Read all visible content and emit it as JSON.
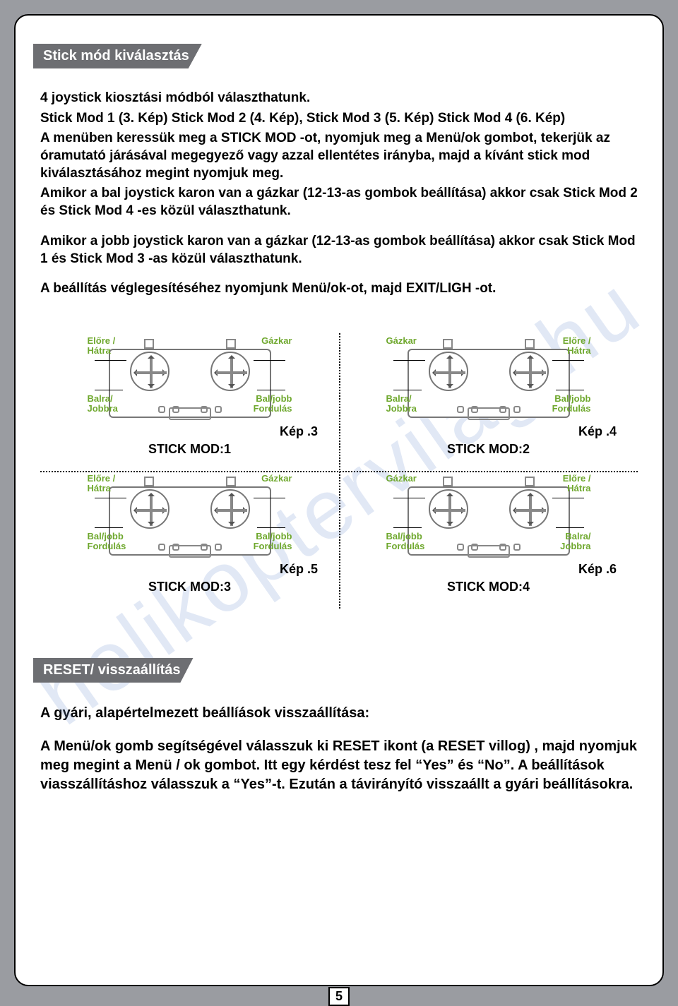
{
  "colors": {
    "page_bg": "#9a9ca1",
    "header_bg": "#6d6e72",
    "header_text": "#ffffff",
    "body_text": "#000000",
    "label_green": "#6fa82e",
    "diagram_line": "#777777",
    "watermark": "rgba(120,150,210,0.22)"
  },
  "header1": "Stick mód kiválasztás",
  "intro": {
    "p1": "4 joystick kiosztási módból választhatunk.",
    "p2": "Stick Mod 1 (3. Kép) Stick Mod 2 (4. Kép), Stick Mod 3 (5. Kép) Stick Mod 4 (6. Kép)",
    "p3": "A menüben keressük meg a STICK MOD -ot, nyomjuk meg a Menü/ok gombot, tekerjük az óramutató járásával megegyező vagy azzal ellentétes irányba, majd a kívánt stick mod kiválasztásához megint nyomjuk meg.",
    "p4": "Amikor a bal joystick karon  van a gázkar (12-13-as gombok beállítása) akkor csak Stick Mod 2 és Stick Mod 4 -es közül választhatunk.",
    "p5": "Amikor a jobb joystick karon  van a gázkar (12-13-as gombok beállítása) akkor csak Stick Mod 1 és Stick Mod 3 -as közül választhatunk.",
    "p6": "A beállítás véglegesítéséhez nyomjunk Menü/ok-ot, majd EXIT/LIGH -ot."
  },
  "diagrams": [
    {
      "tl": "Előre /\nHátra",
      "tr": "Gázkar",
      "bl": "Balra/\nJobbra",
      "br": "Bal/jobb\nFordulás",
      "kep": "Kép .3",
      "title": "STICK MOD:1"
    },
    {
      "tl": "Gázkar",
      "tr": "Előre /\nHátra",
      "bl": "Balra/\nJobbra",
      "br": "Bal/jobb\nFordulás",
      "kep": "Kép .4",
      "title": "STICK MOD:2"
    },
    {
      "tl": "Előre /\nHátra",
      "tr": "Gázkar",
      "bl": "Bal/jobb\nFordulás",
      "br": "Bal/jobb\nFordulás",
      "kep": "Kép .5",
      "title": "STICK MOD:3"
    },
    {
      "tl": "Gázkar",
      "tr": "Előre /\nHátra",
      "bl": "Bal/jobb\nFordulás",
      "br": "Balra/\nJobbra",
      "kep": "Kép .6",
      "title": "STICK MOD:4"
    }
  ],
  "header2": "RESET/ visszaállítás",
  "reset": {
    "p1": "A gyári, alapértelmezett beállíások visszaállítása:",
    "p2": "A Menü/ok gomb segítségével válasszuk ki RESET ikont (a RESET villog) , majd nyomjuk meg megint a Menü / ok gombot. Itt egy kérdést tesz fel “Yes” és “No”. A beállítások viasszállításhoz válasszuk a “Yes”-t. Ezután a távirányító visszaállt a gyári beállításokra."
  },
  "page_number": "5",
  "watermark": "helikoptervilag.hu"
}
